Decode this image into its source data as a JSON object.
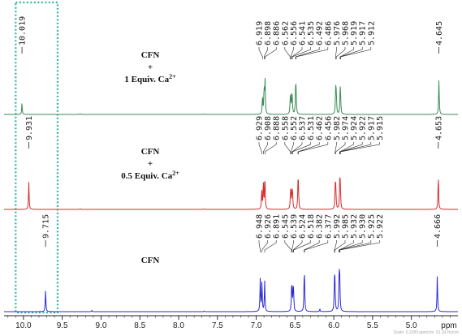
{
  "chart_data": {
    "type": "line",
    "xlabel": "ppm",
    "x_axis_reversed": true,
    "xlim": [
      10.25,
      4.4
    ],
    "grid": false,
    "x_ticks": [
      "10.0",
      "9.5",
      "9.0",
      "8.5",
      "8.0",
      "7.5",
      "7.0",
      "6.5",
      "6.0",
      "5.5",
      "5.0",
      "ppm"
    ],
    "x_tick_values": [
      10.0,
      9.5,
      9.0,
      8.5,
      8.0,
      7.5,
      7.0,
      6.5,
      6.0,
      5.5,
      5.0
    ],
    "scale_note": "Scale: 0.2283 ppm/cm, 91.33 Hz/cm",
    "highlight_region": {
      "from": 10.1,
      "to": 9.56,
      "style": "dotted",
      "color": "#2bb5ad"
    },
    "series": [
      {
        "color": "#3a8a55",
        "sample_lines": [
          "CFN",
          "+",
          "1 Equiv. Ca",
          "2+"
        ],
        "labels_single": [
          "10.019",
          "4.645"
        ],
        "labels_group": [
          "6.919",
          "6.898",
          "6.886",
          "6.562",
          "6.556",
          "6.541",
          "6.535",
          "6.492",
          "6.486",
          "5.976",
          "5.968",
          "5.919",
          "5.917",
          "5.912"
        ],
        "peaks": [
          {
            "x": 10.019,
            "h": 0.3
          },
          {
            "x": 9.27,
            "h": 0.02
          },
          {
            "x": 7.67,
            "h": 0.015
          },
          {
            "x": 6.919,
            "h": 0.5
          },
          {
            "x": 6.898,
            "h": 0.7
          },
          {
            "x": 6.886,
            "h": 0.9
          },
          {
            "x": 6.562,
            "h": 0.3
          },
          {
            "x": 6.556,
            "h": 0.38
          },
          {
            "x": 6.541,
            "h": 0.4
          },
          {
            "x": 6.535,
            "h": 0.3
          },
          {
            "x": 6.492,
            "h": 0.62
          },
          {
            "x": 6.486,
            "h": 0.55
          },
          {
            "x": 5.976,
            "h": 0.65
          },
          {
            "x": 5.968,
            "h": 0.55
          },
          {
            "x": 5.919,
            "h": 0.35
          },
          {
            "x": 5.917,
            "h": 0.3
          },
          {
            "x": 5.912,
            "h": 0.32
          },
          {
            "x": 4.645,
            "h": 0.95
          }
        ]
      },
      {
        "color": "#d62a2a",
        "sample_lines": [
          "CFN",
          "+",
          "0.5 Equiv. Ca",
          "2+"
        ],
        "labels_single": [
          "9.931",
          "4.653"
        ],
        "labels_group": [
          "6.929",
          "6.908",
          "6.888",
          "6.558",
          "6.552",
          "6.537",
          "6.531",
          "6.462",
          "6.456",
          "5.982",
          "5.974",
          "5.924",
          "5.922",
          "5.917",
          "5.915"
        ],
        "peaks": [
          {
            "x": 9.931,
            "h": 0.75
          },
          {
            "x": 9.27,
            "h": 0.02
          },
          {
            "x": 7.67,
            "h": 0.015
          },
          {
            "x": 6.929,
            "h": 0.55
          },
          {
            "x": 6.908,
            "h": 0.75
          },
          {
            "x": 6.888,
            "h": 0.95
          },
          {
            "x": 6.558,
            "h": 0.35
          },
          {
            "x": 6.552,
            "h": 0.42
          },
          {
            "x": 6.537,
            "h": 0.42
          },
          {
            "x": 6.531,
            "h": 0.32
          },
          {
            "x": 6.462,
            "h": 0.6
          },
          {
            "x": 6.456,
            "h": 0.55
          },
          {
            "x": 5.982,
            "h": 0.65
          },
          {
            "x": 5.974,
            "h": 0.55
          },
          {
            "x": 5.924,
            "h": 0.38
          },
          {
            "x": 5.922,
            "h": 0.32
          },
          {
            "x": 5.917,
            "h": 0.32
          },
          {
            "x": 5.915,
            "h": 0.3
          },
          {
            "x": 4.653,
            "h": 0.95
          }
        ]
      },
      {
        "color": "#2a2ad6",
        "sample_lines": [
          "CFN"
        ],
        "labels_single": [
          "9.715",
          "4.666"
        ],
        "labels_group": [
          "6.948",
          "6.926",
          "6.891",
          "6.545",
          "6.539",
          "6.524",
          "6.518",
          "6.382",
          "6.377",
          "5.992",
          "5.985",
          "5.932",
          "5.930",
          "5.925",
          "5.922"
        ],
        "peaks": [
          {
            "x": 9.715,
            "h": 0.55
          },
          {
            "x": 9.12,
            "h": 0.03
          },
          {
            "x": 7.67,
            "h": 0.015
          },
          {
            "x": 6.18,
            "h": 0.06
          },
          {
            "x": 6.948,
            "h": 0.8
          },
          {
            "x": 6.926,
            "h": 0.75
          },
          {
            "x": 6.891,
            "h": 0.75
          },
          {
            "x": 6.545,
            "h": 0.4
          },
          {
            "x": 6.539,
            "h": 0.45
          },
          {
            "x": 6.524,
            "h": 0.45
          },
          {
            "x": 6.518,
            "h": 0.38
          },
          {
            "x": 6.382,
            "h": 0.62
          },
          {
            "x": 6.377,
            "h": 0.58
          },
          {
            "x": 5.992,
            "h": 0.72
          },
          {
            "x": 5.985,
            "h": 0.62
          },
          {
            "x": 5.932,
            "h": 0.48
          },
          {
            "x": 5.93,
            "h": 0.42
          },
          {
            "x": 5.925,
            "h": 0.42
          },
          {
            "x": 5.922,
            "h": 0.38
          },
          {
            "x": 4.666,
            "h": 0.9
          }
        ]
      }
    ]
  }
}
